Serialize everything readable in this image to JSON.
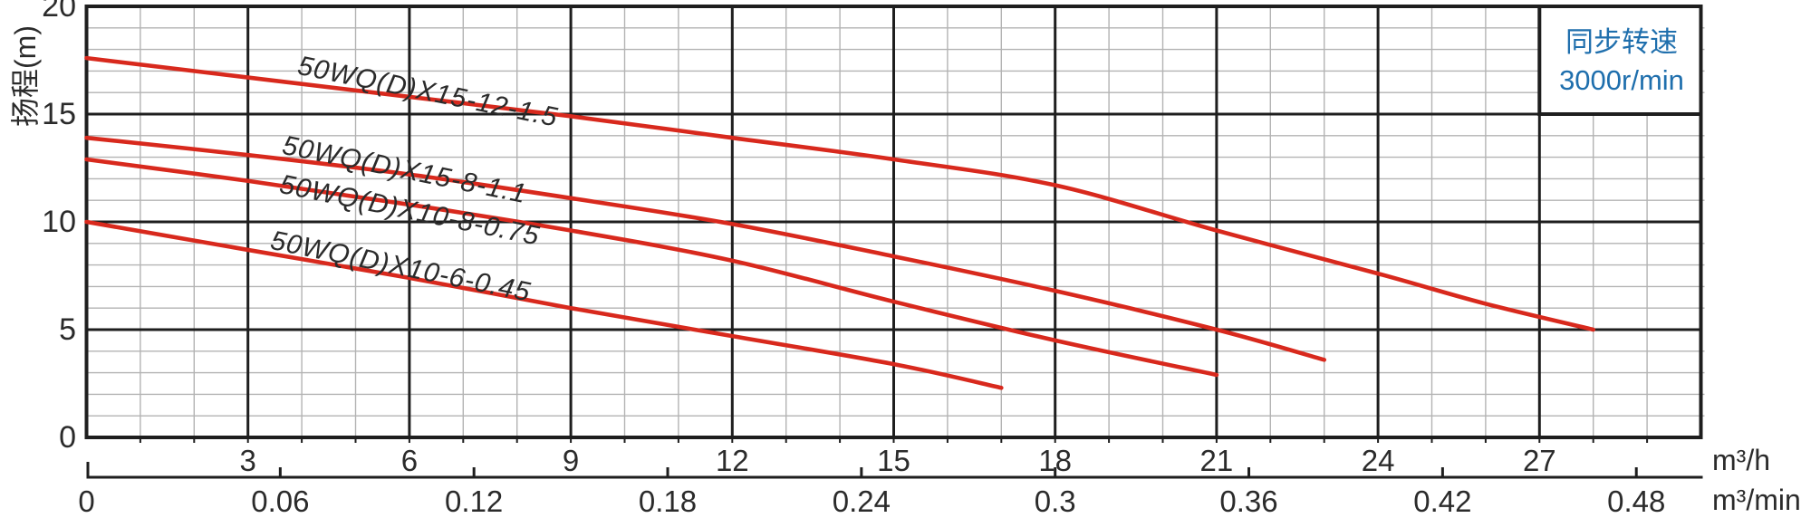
{
  "y_axis": {
    "title": "扬程(m)",
    "tick_labels": [
      "20",
      "15",
      "10",
      "5",
      "0"
    ],
    "tick_values": [
      20,
      15,
      10,
      5,
      0
    ]
  },
  "x_axis_primary": {
    "unit": "m³/h",
    "tick_labels": [
      "3",
      "6",
      "9",
      "12",
      "15",
      "18",
      "21",
      "24",
      "27"
    ],
    "tick_values": [
      3,
      6,
      9,
      12,
      15,
      18,
      21,
      24,
      27
    ]
  },
  "x_axis_secondary": {
    "unit": "m³/min",
    "tick_labels": [
      "0",
      "0.06",
      "0.12",
      "0.18",
      "0.24",
      "0.3",
      "0.36",
      "0.42",
      "0.48"
    ],
    "tick_values": [
      0,
      0.06,
      0.12,
      0.18,
      0.24,
      0.3,
      0.36,
      0.42,
      0.48
    ]
  },
  "legend": {
    "line1": "同步转速",
    "line2": "3000r/min",
    "text_color": "#1f6fad"
  },
  "colors": {
    "curve": "#d8291d",
    "grid_major": "#1e1e1e",
    "grid_minor": "#b3b3b3",
    "text": "#2b2b2b"
  },
  "chart_data": {
    "type": "line",
    "ylabel": "扬程(m)",
    "xlabel_primary": "m³/h",
    "xlabel_secondary": "m³/min",
    "x_range_m3h": [
      0,
      30
    ],
    "y_range_m": [
      0,
      20
    ],
    "grid": {
      "x_minor_step": 1,
      "x_major_step": 3,
      "y_minor_step": 1,
      "y_major_step": 5
    },
    "legend_position": "top-right",
    "series": [
      {
        "name": "50WQ(D)X15-12-1.5",
        "points": [
          [
            0,
            17.6
          ],
          [
            3,
            16.7
          ],
          [
            6,
            15.8
          ],
          [
            9,
            14.9
          ],
          [
            12,
            13.9
          ],
          [
            15,
            12.9
          ],
          [
            18,
            11.7
          ],
          [
            21,
            9.6
          ],
          [
            24,
            7.6
          ],
          [
            26,
            6.2
          ],
          [
            28,
            5.0
          ]
        ]
      },
      {
        "name": "50WQ(D)X15-8-1.1",
        "points": [
          [
            0,
            13.9
          ],
          [
            3,
            13.1
          ],
          [
            6,
            12.2
          ],
          [
            9,
            11.1
          ],
          [
            12,
            9.9
          ],
          [
            15,
            8.4
          ],
          [
            18,
            6.8
          ],
          [
            21,
            5.0
          ],
          [
            23,
            3.6
          ]
        ]
      },
      {
        "name": "50WQ(D)X10-8-0.75",
        "points": [
          [
            0,
            12.9
          ],
          [
            3,
            11.9
          ],
          [
            6,
            10.8
          ],
          [
            9,
            9.6
          ],
          [
            12,
            8.2
          ],
          [
            15,
            6.3
          ],
          [
            18,
            4.5
          ],
          [
            21,
            2.9
          ]
        ]
      },
      {
        "name": "50WQ(D)X10-6-0.45",
        "points": [
          [
            0,
            10.0
          ],
          [
            3,
            8.7
          ],
          [
            6,
            7.4
          ],
          [
            9,
            6.0
          ],
          [
            12,
            4.7
          ],
          [
            15,
            3.4
          ],
          [
            17,
            2.3
          ]
        ]
      }
    ]
  }
}
